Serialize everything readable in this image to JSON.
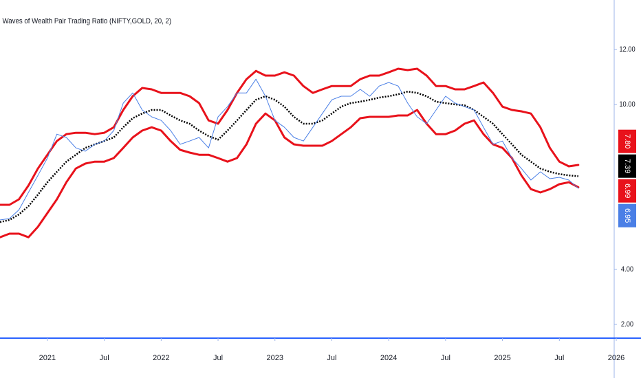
{
  "chart_data": {
    "type": "line",
    "title": "Waves of Wealth Pair Trading Ratio (NIFTY,GOLD, 20, 2)",
    "x": [
      "2020-08",
      "2020-09",
      "2020-10",
      "2020-11",
      "2020-12",
      "2021-01",
      "2021-02",
      "2021-03",
      "2021-04",
      "2021-05",
      "2021-06",
      "2021-07",
      "2021-08",
      "2021-09",
      "2021-10",
      "2021-11",
      "2021-12",
      "2022-01",
      "2022-02",
      "2022-03",
      "2022-04",
      "2022-05",
      "2022-06",
      "2022-07",
      "2022-08",
      "2022-09",
      "2022-10",
      "2022-11",
      "2022-12",
      "2023-01",
      "2023-02",
      "2023-03",
      "2023-04",
      "2023-05",
      "2023-06",
      "2023-07",
      "2023-08",
      "2023-09",
      "2023-10",
      "2023-11",
      "2023-12",
      "2024-01",
      "2024-02",
      "2024-03",
      "2024-04",
      "2024-05",
      "2024-06",
      "2024-07",
      "2024-08",
      "2024-09",
      "2024-10",
      "2024-11",
      "2024-12",
      "2025-01",
      "2025-02",
      "2025-03",
      "2025-04",
      "2025-05",
      "2025-06",
      "2025-07",
      "2025-08",
      "2025-09"
    ],
    "xlim": [
      "2020-08",
      "2026-01"
    ],
    "xticks": [
      {
        "value": "2021-01",
        "label": "2021"
      },
      {
        "value": "2021-07",
        "label": "Jul"
      },
      {
        "value": "2022-01",
        "label": "2022"
      },
      {
        "value": "2022-07",
        "label": "Jul"
      },
      {
        "value": "2023-01",
        "label": "2023"
      },
      {
        "value": "2023-07",
        "label": "Jul"
      },
      {
        "value": "2024-01",
        "label": "2024"
      },
      {
        "value": "2024-07",
        "label": "Jul"
      },
      {
        "value": "2025-01",
        "label": "2025"
      },
      {
        "value": "2025-07",
        "label": "Jul"
      },
      {
        "value": "2026-01",
        "label": "2026"
      }
    ],
    "ylim": [
      1.5,
      13.8
    ],
    "yticks": [
      {
        "value": 2,
        "label": "2.00"
      },
      {
        "value": 4,
        "label": "4.00"
      },
      {
        "value": 10,
        "label": "10.00"
      },
      {
        "value": 12,
        "label": "12.00"
      }
    ],
    "series": [
      {
        "color": "#e8121b",
        "width": 3,
        "values": [
          6.35,
          6.35,
          6.55,
          7.05,
          7.67,
          8.17,
          8.67,
          8.92,
          8.97,
          8.97,
          8.92,
          8.97,
          9.17,
          9.8,
          10.3,
          10.6,
          10.55,
          10.42,
          10.42,
          10.42,
          10.3,
          10.05,
          9.42,
          9.3,
          9.8,
          10.42,
          10.92,
          11.22,
          11.05,
          11.05,
          11.17,
          11.05,
          10.67,
          10.42,
          10.55,
          10.67,
          10.67,
          10.67,
          10.92,
          11.05,
          11.05,
          11.17,
          11.3,
          11.25,
          11.3,
          11.05,
          10.67,
          10.67,
          10.55,
          10.55,
          10.67,
          10.8,
          10.42,
          9.92,
          9.8,
          9.75,
          9.67,
          9.17,
          8.42,
          7.92,
          7.75,
          7.8
        ],
        "value_labels": [
          null,
          null,
          null,
          null,
          null,
          null,
          null,
          null,
          null,
          null,
          null,
          null,
          null,
          null,
          null,
          null,
          null,
          null,
          null,
          null,
          null,
          null,
          null,
          null,
          null,
          null,
          null,
          null,
          null,
          null,
          null,
          null,
          null,
          null,
          null,
          null,
          null,
          null,
          null,
          null,
          null,
          null,
          null,
          null,
          null,
          null,
          null,
          null,
          null,
          null,
          null,
          null,
          null,
          null,
          null,
          null,
          null,
          null,
          null,
          null,
          null,
          "7.80"
        ]
      },
      {
        "color": "#000000",
        "width": 2.5,
        "dotted": true,
        "values": [
          5.72,
          5.8,
          6.0,
          6.3,
          6.72,
          7.17,
          7.55,
          7.92,
          8.17,
          8.42,
          8.55,
          8.67,
          8.8,
          9.17,
          9.5,
          9.67,
          9.8,
          9.8,
          9.6,
          9.42,
          9.3,
          9.05,
          8.85,
          8.72,
          9.05,
          9.42,
          9.8,
          10.17,
          10.3,
          10.17,
          9.92,
          9.55,
          9.3,
          9.3,
          9.42,
          9.67,
          9.92,
          10.05,
          10.1,
          10.17,
          10.25,
          10.3,
          10.37,
          10.47,
          10.42,
          10.3,
          10.1,
          10.05,
          10.0,
          9.97,
          9.8,
          9.55,
          9.3,
          8.92,
          8.55,
          8.17,
          7.92,
          7.67,
          7.55,
          7.47,
          7.42,
          7.39
        ],
        "value_labels": [
          null,
          null,
          null,
          null,
          null,
          null,
          null,
          null,
          null,
          null,
          null,
          null,
          null,
          null,
          null,
          null,
          null,
          null,
          null,
          null,
          null,
          null,
          null,
          null,
          null,
          null,
          null,
          null,
          null,
          null,
          null,
          null,
          null,
          null,
          null,
          null,
          null,
          null,
          null,
          null,
          null,
          null,
          null,
          null,
          null,
          null,
          null,
          null,
          null,
          null,
          null,
          null,
          null,
          null,
          null,
          null,
          null,
          null,
          null,
          null,
          null,
          "7.39"
        ]
      },
      {
        "color": "#e8121b",
        "width": 3,
        "values": [
          5.17,
          5.3,
          5.3,
          5.17,
          5.55,
          6.05,
          6.55,
          7.17,
          7.67,
          7.85,
          7.92,
          7.92,
          8.05,
          8.42,
          8.8,
          9.05,
          9.17,
          9.05,
          8.67,
          8.35,
          8.25,
          8.17,
          8.17,
          8.05,
          7.92,
          8.05,
          8.55,
          9.3,
          9.67,
          9.42,
          8.8,
          8.55,
          8.5,
          8.5,
          8.5,
          8.67,
          8.92,
          9.17,
          9.5,
          9.55,
          9.55,
          9.55,
          9.6,
          9.6,
          9.8,
          9.3,
          8.92,
          8.92,
          9.05,
          9.3,
          9.42,
          8.92,
          8.55,
          8.42,
          8.05,
          7.42,
          6.92,
          6.8,
          6.92,
          7.1,
          7.17,
          6.99
        ],
        "value_labels": [
          null,
          null,
          null,
          null,
          null,
          null,
          null,
          null,
          null,
          null,
          null,
          null,
          null,
          null,
          null,
          null,
          null,
          null,
          null,
          null,
          null,
          null,
          null,
          null,
          null,
          null,
          null,
          null,
          null,
          null,
          null,
          null,
          null,
          null,
          null,
          null,
          null,
          null,
          null,
          null,
          null,
          null,
          null,
          null,
          null,
          null,
          null,
          null,
          null,
          null,
          null,
          null,
          null,
          null,
          null,
          null,
          null,
          null,
          null,
          null,
          null,
          "6.99"
        ]
      },
      {
        "color": "#4a7fe6",
        "width": 1,
        "values": [
          5.8,
          5.85,
          6.17,
          6.8,
          7.42,
          8.05,
          8.92,
          8.8,
          8.42,
          8.3,
          8.55,
          8.67,
          9.05,
          10.05,
          10.42,
          9.8,
          9.55,
          9.42,
          9.05,
          8.55,
          8.67,
          8.8,
          8.42,
          9.55,
          9.92,
          10.42,
          10.42,
          10.92,
          10.3,
          9.42,
          9.17,
          8.8,
          8.67,
          9.17,
          9.67,
          10.17,
          10.3,
          10.3,
          10.55,
          10.3,
          10.67,
          10.8,
          10.67,
          10.05,
          9.55,
          9.3,
          9.8,
          10.3,
          10.05,
          9.92,
          9.8,
          9.17,
          8.55,
          8.67,
          8.05,
          7.67,
          7.25,
          7.55,
          7.3,
          7.35,
          7.25,
          6.95
        ],
        "value_labels": [
          null,
          null,
          null,
          null,
          null,
          null,
          null,
          null,
          null,
          null,
          null,
          null,
          null,
          null,
          null,
          null,
          null,
          null,
          null,
          null,
          null,
          null,
          null,
          null,
          null,
          null,
          null,
          null,
          null,
          null,
          null,
          null,
          null,
          null,
          null,
          null,
          null,
          null,
          null,
          null,
          null,
          null,
          null,
          null,
          null,
          null,
          null,
          null,
          null,
          null,
          null,
          null,
          null,
          null,
          null,
          null,
          null,
          null,
          null,
          null,
          null,
          "6.95"
        ]
      }
    ]
  }
}
